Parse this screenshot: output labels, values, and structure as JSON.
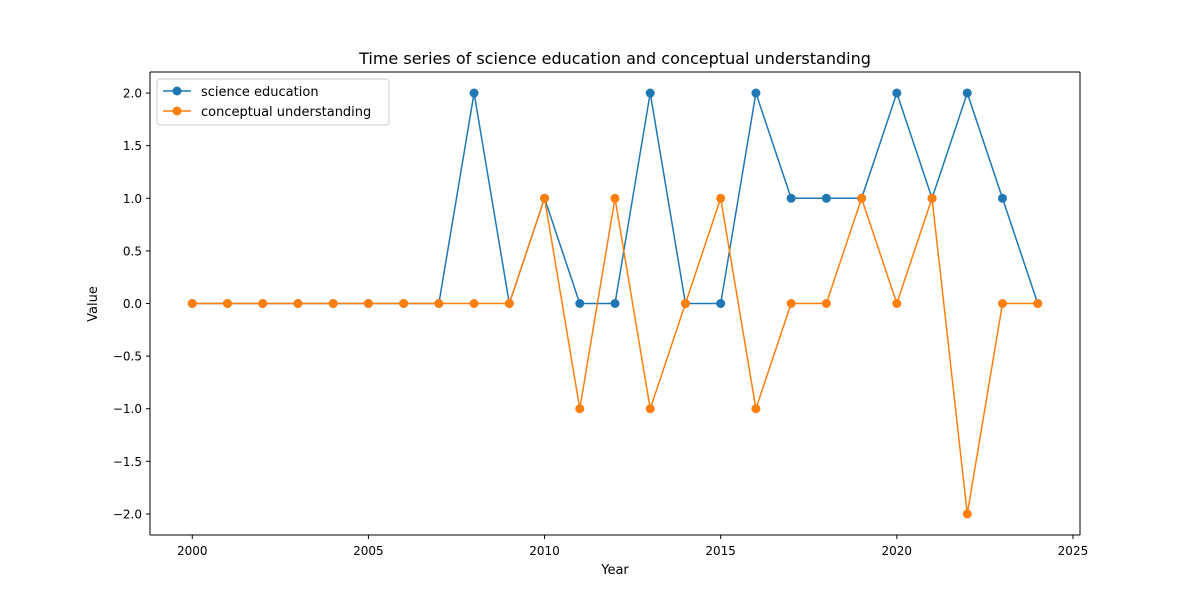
{
  "chart_data": {
    "type": "line",
    "title": "Time series of science education and conceptual understanding",
    "xlabel": "Year",
    "ylabel": "Value",
    "x": [
      2000,
      2001,
      2002,
      2003,
      2004,
      2005,
      2006,
      2007,
      2008,
      2009,
      2010,
      2011,
      2012,
      2013,
      2014,
      2015,
      2016,
      2017,
      2018,
      2019,
      2020,
      2021,
      2022,
      2023,
      2024
    ],
    "series": [
      {
        "name": "science education",
        "color": "#1f77b4",
        "values": [
          0,
          0,
          0,
          0,
          0,
          0,
          0,
          0,
          2,
          0,
          1,
          0,
          0,
          2,
          0,
          0,
          2,
          1,
          1,
          1,
          2,
          1,
          2,
          1,
          0
        ]
      },
      {
        "name": "conceptual understanding",
        "color": "#ff7f0e",
        "values": [
          0,
          0,
          0,
          0,
          0,
          0,
          0,
          0,
          0,
          0,
          1,
          -1,
          1,
          -1,
          0,
          1,
          -1,
          0,
          0,
          1,
          0,
          1,
          -2,
          0,
          0
        ]
      }
    ],
    "xlim": [
      1998.8,
      2025.2
    ],
    "ylim": [
      -2.2,
      2.2
    ],
    "xticks": [
      2000,
      2005,
      2010,
      2015,
      2020,
      2025
    ],
    "xtick_labels": [
      "2000",
      "2005",
      "2010",
      "2015",
      "2020",
      "2025"
    ],
    "yticks": [
      -2.0,
      -1.5,
      -1.0,
      -0.5,
      0.0,
      0.5,
      1.0,
      1.5,
      2.0
    ],
    "ytick_labels": [
      "−2.0",
      "−1.5",
      "−1.0",
      "−0.5",
      "0.0",
      "0.5",
      "1.0",
      "1.5",
      "2.0"
    ],
    "grid": false,
    "legend_position": "top-left",
    "marker": "circle"
  }
}
